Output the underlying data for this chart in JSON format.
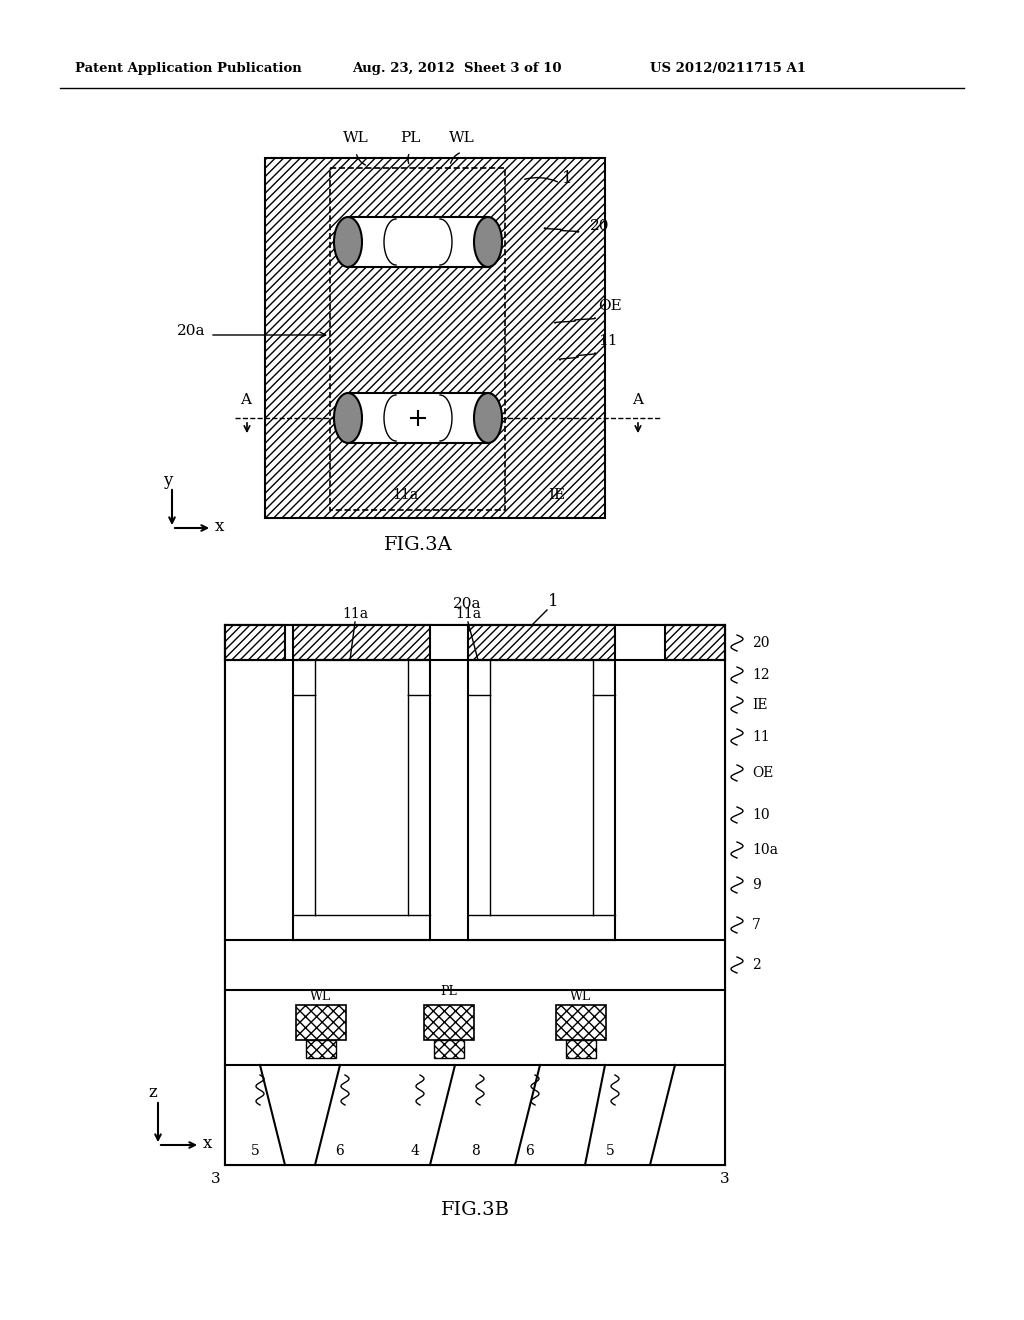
{
  "bg_color": "#ffffff",
  "line_color": "#000000",
  "header_left": "Patent Application Publication",
  "header_mid": "Aug. 23, 2012  Sheet 3 of 10",
  "header_right": "US 2012/0211715 A1"
}
